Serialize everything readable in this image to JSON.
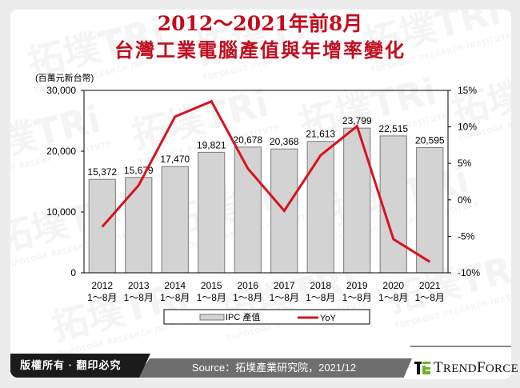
{
  "title": {
    "line1": "2012～2021年前8月",
    "line2": "台灣工業電腦產值與年增率變化"
  },
  "chart_data": {
    "type": "bar+line",
    "title": "2012～2021年前8月 台灣工業電腦產值與年增率變化",
    "categories": [
      "2012\n1～8月",
      "2013\n1～8月",
      "2014\n1～8月",
      "2015\n1～8月",
      "2016\n1～8月",
      "2017\n1～8月",
      "2018\n1～8月",
      "2019\n1～8月",
      "2020\n1～8月",
      "2021\n1～8月"
    ],
    "category_years": [
      "2012",
      "2013",
      "2014",
      "2015",
      "2016",
      "2017",
      "2018",
      "2019",
      "2020",
      "2021"
    ],
    "category_period": "1～8月",
    "series": [
      {
        "name": "IPC 產值",
        "type": "bar",
        "axis": "left",
        "color": "#d3d3d3",
        "values": [
          15372,
          15679,
          17470,
          19821,
          20678,
          20368,
          21613,
          23799,
          22515,
          20595
        ],
        "labels": [
          "15,372",
          "15,679",
          "17,470",
          "19,821",
          "20,678",
          "20,368",
          "21,613",
          "23,799",
          "22,515",
          "20,595"
        ]
      },
      {
        "name": "YoY",
        "type": "line",
        "axis": "right",
        "color": "#d7131f",
        "values": [
          -3.7,
          2.0,
          11.4,
          13.5,
          4.3,
          -1.5,
          6.1,
          10.1,
          -5.4,
          -8.5
        ]
      }
    ],
    "ylabel": "(百萬元新台幣)",
    "ylim": [
      0,
      30000
    ],
    "yticks": [
      "0",
      "10,000",
      "20,000",
      "30,000"
    ],
    "y2lim": [
      -10,
      15
    ],
    "y2ticks": [
      "-10%",
      "-5%",
      "0%",
      "5%",
      "10%",
      "15%"
    ],
    "legend": {
      "position": "bottom",
      "items": [
        "IPC 產值",
        "YoY"
      ]
    },
    "grid": false
  },
  "footer": {
    "copyright": "版權所有 · 翻印必究",
    "source": "Source：拓墣產業研究院，2021/12",
    "logo_text": "TRENDFORCE"
  },
  "colors": {
    "title": "#c00d1e",
    "bar": "#d3d3d3",
    "line": "#d7131f",
    "footer_black": "#1b1b1b",
    "footer_gray": "#6e6e6e",
    "logo_green": "#6ab42d"
  }
}
